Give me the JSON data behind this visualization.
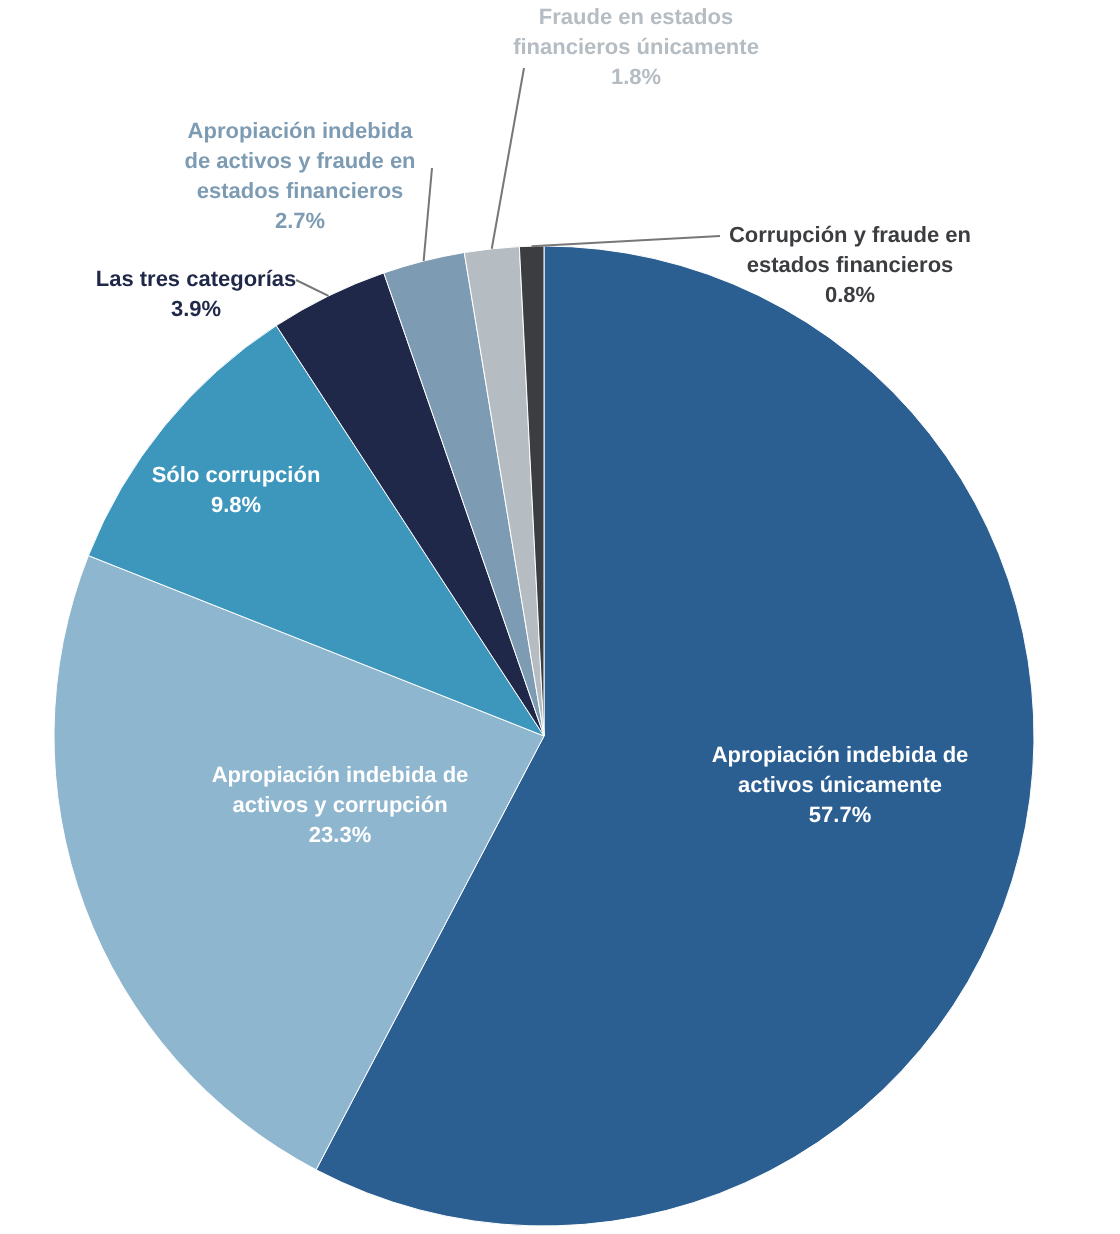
{
  "chart_data": {
    "type": "pie",
    "categories": [
      "Apropiación indebida de activos únicamente",
      "Apropiación indebida de activos y corrupción",
      "Sólo corrupción",
      "Las tres categorías",
      "Apropiación indebida de activos y fraude en estados financieros",
      "Fraude en estados financieros únicamente",
      "Corrupción y fraude en estados financieros"
    ],
    "values": [
      57.7,
      23.3,
      9.8,
      3.9,
      2.7,
      1.8,
      0.8
    ],
    "colors": [
      "#2b5f92",
      "#8fb6cf",
      "#3d97bd",
      "#1f2849",
      "#7d9cb3",
      "#b5bcc2",
      "#3b3d40"
    ],
    "value_labels": [
      "57.7%",
      "23.3%",
      "9.8%",
      "3.9%",
      "2.7%",
      "1.8%",
      "0.8%"
    ]
  }
}
